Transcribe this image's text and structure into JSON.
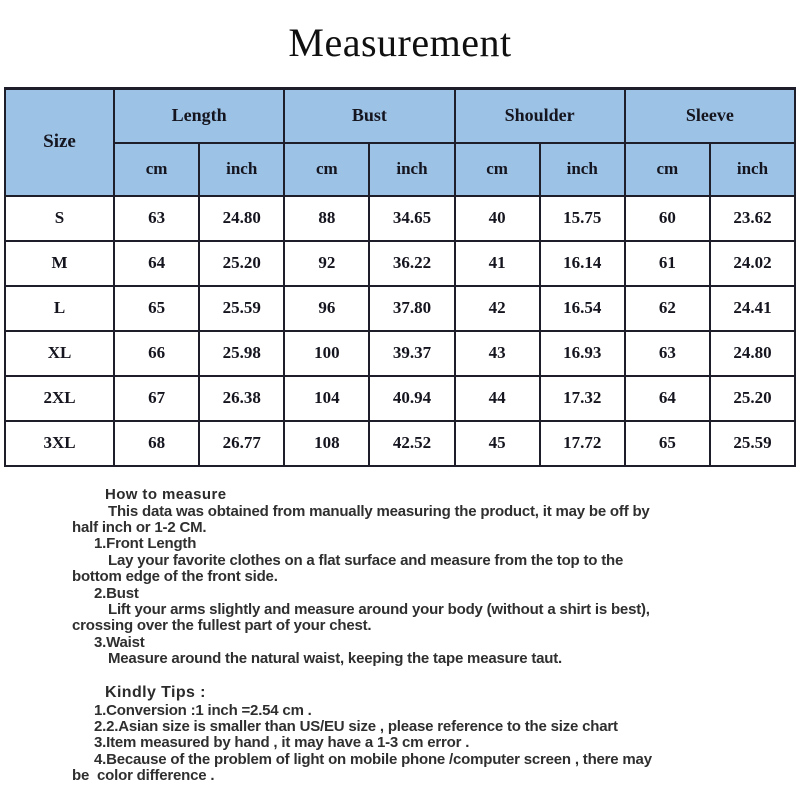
{
  "title": "Measurement",
  "size_table": {
    "corner_label": "Size",
    "group_headers": [
      "Length",
      "Bust",
      "Shoulder",
      "Sleeve"
    ],
    "unit_headers": [
      "cm",
      "inch"
    ],
    "rows": [
      {
        "size": "S",
        "values": [
          "63",
          "24.80",
          "88",
          "34.65",
          "40",
          "15.75",
          "60",
          "23.62"
        ]
      },
      {
        "size": "M",
        "values": [
          "64",
          "25.20",
          "92",
          "36.22",
          "41",
          "16.14",
          "61",
          "24.02"
        ]
      },
      {
        "size": "L",
        "values": [
          "65",
          "25.59",
          "96",
          "37.80",
          "42",
          "16.54",
          "62",
          "24.41"
        ]
      },
      {
        "size": "XL",
        "values": [
          "66",
          "25.98",
          "100",
          "39.37",
          "43",
          "16.93",
          "63",
          "24.80"
        ]
      },
      {
        "size": "2XL",
        "values": [
          "67",
          "26.38",
          "104",
          "40.94",
          "44",
          "17.32",
          "64",
          "25.20"
        ]
      },
      {
        "size": "3XL",
        "values": [
          "68",
          "26.77",
          "108",
          "42.52",
          "45",
          "17.72",
          "65",
          "25.59"
        ]
      }
    ]
  },
  "how_to_measure": {
    "heading": "How to measure",
    "lines": [
      "This data was obtained from manually measuring the product, it may be off by",
      "half inch or 1-2 CM.",
      "1.Front Length",
      "Lay your favorite clothes on a flat surface and measure from the top to the",
      "bottom edge of the front side.",
      "2.Bust",
      "Lift your arms slightly and measure around your body (without a shirt is best),",
      "crossing over the fullest part of your chest.",
      "3.Waist",
      "Measure around the natural waist, keeping the tape measure taut."
    ]
  },
  "kindly_tips": {
    "heading": "Kindly Tips :",
    "lines": [
      "1.Conversion :1 inch =2.54 cm .",
      "2.2.Asian size is smaller than US/EU size , please reference to the size chart",
      "3.Item measured by hand , it may have a 1-3 cm error .",
      "4.Because of the problem of light on mobile phone /computer screen , there may",
      "be  color difference ."
    ]
  },
  "colors": {
    "header_fill": "#9cc2e6",
    "table_border": "#1e1e2a",
    "table_text": "#15151f",
    "body_text": "#2f2f2f"
  }
}
